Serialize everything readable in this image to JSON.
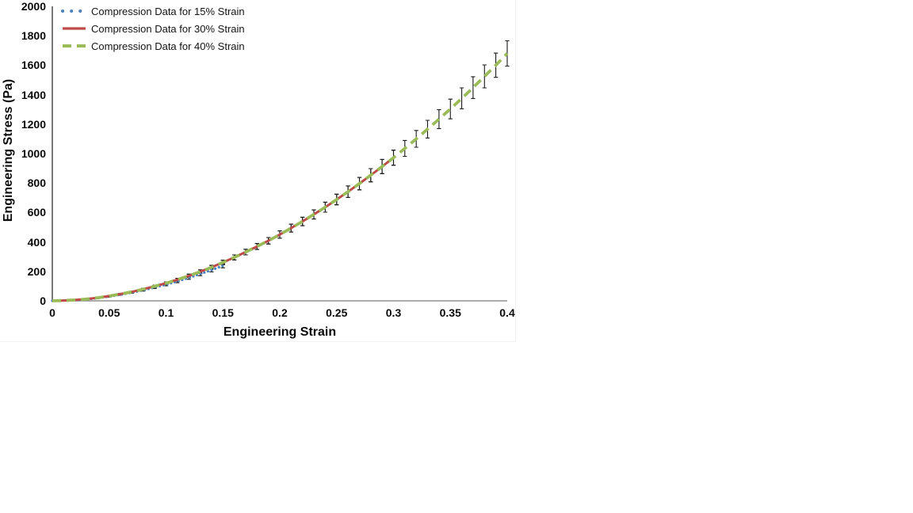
{
  "chart_data": {
    "type": "line",
    "title": "",
    "xlabel": "Engineering Strain",
    "ylabel": "Engineering Stress (Pa)",
    "xlim": [
      0,
      0.4
    ],
    "ylim": [
      0,
      2000
    ],
    "x_ticks": [
      0,
      0.05,
      0.1,
      0.15,
      0.2,
      0.25,
      0.3,
      0.35,
      0.4
    ],
    "x_tick_labels": [
      "0",
      "0.05",
      "0.1",
      "0.15",
      "0.2",
      "0.25",
      "0.3",
      "0.35",
      "0.4"
    ],
    "y_ticks": [
      0,
      200,
      400,
      600,
      800,
      1000,
      1200,
      1400,
      1600,
      1800,
      2000
    ],
    "grid": false,
    "legend_position": "top-left",
    "error_bars": true,
    "error_bar_color": "#1a1a1a",
    "axis_color_y": "#3f3f3f",
    "axis_color_x": "#8f8f8f",
    "points_schema": [
      "strain",
      "stress_pa",
      "error_pa"
    ],
    "series": [
      {
        "name": "Compression Data for 15% Strain",
        "color": "#4F81BD",
        "style": "dotted",
        "points": [
          [
            0,
            0,
            0
          ],
          [
            0.01,
            2,
            1
          ],
          [
            0.02,
            5,
            2
          ],
          [
            0.03,
            11,
            3
          ],
          [
            0.04,
            19,
            3
          ],
          [
            0.05,
            29,
            4
          ],
          [
            0.06,
            42,
            4
          ],
          [
            0.07,
            56,
            5
          ],
          [
            0.08,
            72,
            6
          ],
          [
            0.09,
            91,
            7
          ],
          [
            0.1,
            110,
            8
          ],
          [
            0.11,
            132,
            9
          ],
          [
            0.12,
            156,
            10
          ],
          [
            0.13,
            182,
            11
          ],
          [
            0.14,
            209,
            12
          ],
          [
            0.15,
            238,
            14
          ]
        ]
      },
      {
        "name": "Compression Data for 30% Strain",
        "color": "#BE4B48",
        "style": "solid",
        "points": [
          [
            0,
            0,
            0
          ],
          [
            0.01,
            2,
            1
          ],
          [
            0.02,
            6,
            2
          ],
          [
            0.03,
            12,
            3
          ],
          [
            0.04,
            21,
            3
          ],
          [
            0.05,
            32,
            4
          ],
          [
            0.06,
            46,
            4
          ],
          [
            0.07,
            61,
            5
          ],
          [
            0.08,
            79,
            6
          ],
          [
            0.09,
            99,
            7
          ],
          [
            0.1,
            120,
            8
          ],
          [
            0.11,
            144,
            9
          ],
          [
            0.12,
            170,
            11
          ],
          [
            0.13,
            198,
            12
          ],
          [
            0.14,
            228,
            13
          ],
          [
            0.15,
            261,
            15
          ],
          [
            0.16,
            295,
            17
          ],
          [
            0.17,
            331,
            19
          ],
          [
            0.18,
            369,
            20
          ],
          [
            0.19,
            408,
            22
          ],
          [
            0.2,
            450,
            25
          ],
          [
            0.21,
            494,
            27
          ],
          [
            0.22,
            539,
            29
          ],
          [
            0.23,
            587,
            31
          ],
          [
            0.24,
            636,
            34
          ],
          [
            0.25,
            688,
            36
          ],
          [
            0.26,
            741,
            39
          ],
          [
            0.27,
            796,
            42
          ],
          [
            0.28,
            853,
            45
          ],
          [
            0.29,
            912,
            48
          ],
          [
            0.3,
            972,
            51
          ]
        ]
      },
      {
        "name": "Compression Data for 40% Strain",
        "color": "#9BBB59",
        "style": "dashed",
        "points": [
          [
            0,
            0,
            0
          ],
          [
            0.01,
            2,
            1
          ],
          [
            0.02,
            6,
            2
          ],
          [
            0.03,
            12,
            3
          ],
          [
            0.04,
            21,
            3
          ],
          [
            0.05,
            32,
            4
          ],
          [
            0.06,
            46,
            4
          ],
          [
            0.07,
            61,
            5
          ],
          [
            0.08,
            79,
            6
          ],
          [
            0.09,
            99,
            7
          ],
          [
            0.1,
            120,
            8
          ],
          [
            0.11,
            144,
            9
          ],
          [
            0.12,
            170,
            11
          ],
          [
            0.13,
            198,
            12
          ],
          [
            0.14,
            228,
            13
          ],
          [
            0.15,
            261,
            15
          ],
          [
            0.16,
            295,
            17
          ],
          [
            0.17,
            331,
            19
          ],
          [
            0.18,
            369,
            20
          ],
          [
            0.19,
            408,
            22
          ],
          [
            0.2,
            450,
            25
          ],
          [
            0.21,
            494,
            27
          ],
          [
            0.22,
            539,
            29
          ],
          [
            0.23,
            587,
            31
          ],
          [
            0.24,
            636,
            34
          ],
          [
            0.25,
            688,
            36
          ],
          [
            0.26,
            741,
            39
          ],
          [
            0.27,
            796,
            42
          ],
          [
            0.28,
            853,
            45
          ],
          [
            0.29,
            912,
            48
          ],
          [
            0.3,
            972,
            51
          ],
          [
            0.31,
            1035,
            54
          ],
          [
            0.32,
            1100,
            57
          ],
          [
            0.33,
            1166,
            60
          ],
          [
            0.34,
            1234,
            64
          ],
          [
            0.35,
            1303,
            67
          ],
          [
            0.36,
            1375,
            71
          ],
          [
            0.37,
            1448,
            74
          ],
          [
            0.38,
            1524,
            78
          ],
          [
            0.39,
            1600,
            82
          ],
          [
            0.4,
            1680,
            86
          ]
        ]
      }
    ]
  }
}
